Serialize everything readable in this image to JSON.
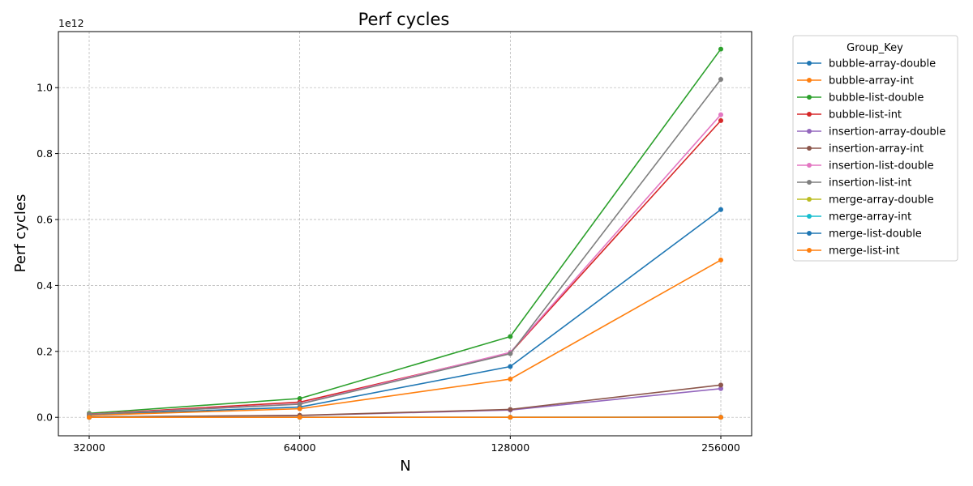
{
  "chart_data": {
    "type": "line",
    "title": "Perf cycles",
    "xlabel": "N",
    "ylabel": "Perf cycles",
    "y_scale_label": "1e12",
    "x_scale": "log2",
    "x": [
      32000,
      64000,
      128000,
      256000
    ],
    "x_tick_labels": [
      "32000",
      "64000",
      "128000",
      "256000"
    ],
    "y_ticks": [
      0.0,
      0.2,
      0.4,
      0.6,
      0.8,
      1.0
    ],
    "y_tick_labels": [
      "0.0",
      "0.2",
      "0.4",
      "0.6",
      "0.8",
      "1.0"
    ],
    "ylim": [
      -0.056,
      1.17
    ],
    "grid": true,
    "legend": {
      "title": "Group_Key",
      "placement": "outside-top-right"
    },
    "series": [
      {
        "name": "bubble-array-double",
        "color": "#1f77b4",
        "values": [
          0.0075,
          0.031,
          0.154,
          0.63
        ]
      },
      {
        "name": "bubble-array-int",
        "color": "#ff7f0e",
        "values": [
          0.006,
          0.026,
          0.116,
          0.477
        ]
      },
      {
        "name": "bubble-list-double",
        "color": "#2ca02c",
        "values": [
          0.012,
          0.057,
          0.245,
          1.117
        ]
      },
      {
        "name": "bubble-list-int",
        "color": "#d62728",
        "values": [
          0.0095,
          0.046,
          0.195,
          0.9
        ]
      },
      {
        "name": "insertion-array-double",
        "color": "#9467bd",
        "values": [
          0.0012,
          0.0055,
          0.022,
          0.087
        ]
      },
      {
        "name": "insertion-array-int",
        "color": "#8c564b",
        "values": [
          0.0013,
          0.006,
          0.024,
          0.098
        ]
      },
      {
        "name": "insertion-list-double",
        "color": "#e377c2",
        "values": [
          0.009,
          0.041,
          0.197,
          0.918
        ]
      },
      {
        "name": "insertion-list-int",
        "color": "#7f7f7f",
        "values": [
          0.0085,
          0.04,
          0.193,
          1.025
        ]
      },
      {
        "name": "merge-array-double",
        "color": "#bcbd22",
        "values": [
          2e-05,
          4e-05,
          8e-05,
          0.00017
        ]
      },
      {
        "name": "merge-array-int",
        "color": "#17becf",
        "values": [
          2e-05,
          4e-05,
          8e-05,
          0.00016
        ]
      },
      {
        "name": "merge-list-double",
        "color": "#1f77b4",
        "values": [
          3e-05,
          6e-05,
          0.00013,
          0.00028
        ]
      },
      {
        "name": "merge-list-int",
        "color": "#ff7f0e",
        "values": [
          3e-05,
          6e-05,
          0.00012,
          0.00026
        ]
      }
    ]
  }
}
